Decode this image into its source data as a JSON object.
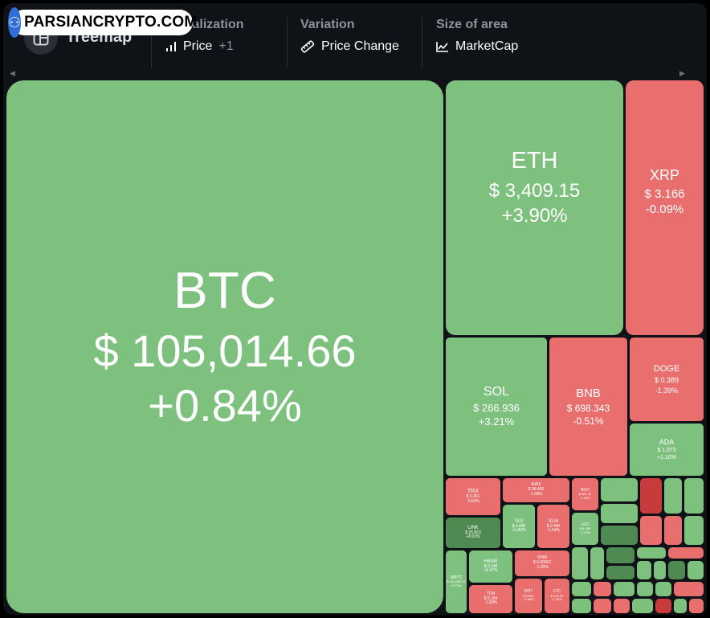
{
  "watermark": {
    "brand": "PARSIANCRYPTO.COM"
  },
  "header": {
    "title": "Treemap",
    "controls": [
      {
        "label": "Visualization",
        "value": "Price",
        "extra": "+1",
        "icon": "bar-chart-icon"
      },
      {
        "label": "Variation",
        "value": "Price Change",
        "icon": "ruler-icon"
      },
      {
        "label": "Size of area",
        "value": "MarketCap",
        "icon": "area-chart-icon"
      }
    ]
  },
  "colors": {
    "up": "#7ec17f",
    "down": "#e86f6e",
    "strong_up": "#4e8a51",
    "strong_down": "#c83b3c",
    "background": "#0f1217"
  },
  "tiles": {
    "btc": {
      "symbol": "BTC",
      "price": "$ 105,014.66",
      "change": "+0.84%"
    },
    "eth": {
      "symbol": "ETH",
      "price": "$ 3,409.15",
      "change": "+3.90%"
    },
    "xrp": {
      "symbol": "XRP",
      "price": "$ 3.166",
      "change": "-0.09%"
    },
    "sol": {
      "symbol": "SOL",
      "price": "$ 266.936",
      "change": "+3.21%"
    },
    "bnb": {
      "symbol": "BNB",
      "price": "$ 698.343",
      "change": "-0.51%"
    },
    "doge": {
      "symbol": "DOGE",
      "price": "$ 0.389",
      "change": "-1.39%"
    },
    "ada": {
      "symbol": "ADA",
      "price": "$ 1.073",
      "change": "+1.10%"
    },
    "trx": {
      "symbol": "TRX",
      "price": "$ 0.261",
      "change": "-0.63%"
    },
    "avax": {
      "symbol": "AVAX",
      "price": "$ 38.486",
      "change": "-1.08%"
    },
    "link": {
      "symbol": "LINK",
      "price": "$ 25.823",
      "change": "+8.02%"
    },
    "sui": {
      "symbol": "SUI",
      "price": "$ 4.896",
      "change": "+1.80%"
    },
    "xlm": {
      "symbol": "XLM",
      "price": "$ 0.466",
      "change": "-1.54%"
    },
    "hbar": {
      "symbol": "HBAR",
      "price": "$ 0.348",
      "change": "+0.47%"
    },
    "shib": {
      "symbol": "SHIB",
      "price": "$ 0.00002",
      "change": "-1.39%"
    },
    "wbtc": {
      "symbol": "WBTC",
      "price": "$ 104,806.17",
      "change": "+0.71%"
    },
    "bch": {
      "symbol": "BCH",
      "price": "$ 461.03",
      "change": "-1.28%"
    },
    "leo": {
      "symbol": "LEO",
      "price": "$ 9.485",
      "change": "+1.23%"
    },
    "ton": {
      "symbol": "TON",
      "price": "$ 5.194",
      "change": "-1.00%"
    },
    "dot": {
      "symbol": "DOT",
      "price": "$ 6.861",
      "change": "-0.96%"
    },
    "ltc": {
      "symbol": "LTC",
      "price": "$ 124.20",
      "change": "-1.02%"
    }
  }
}
